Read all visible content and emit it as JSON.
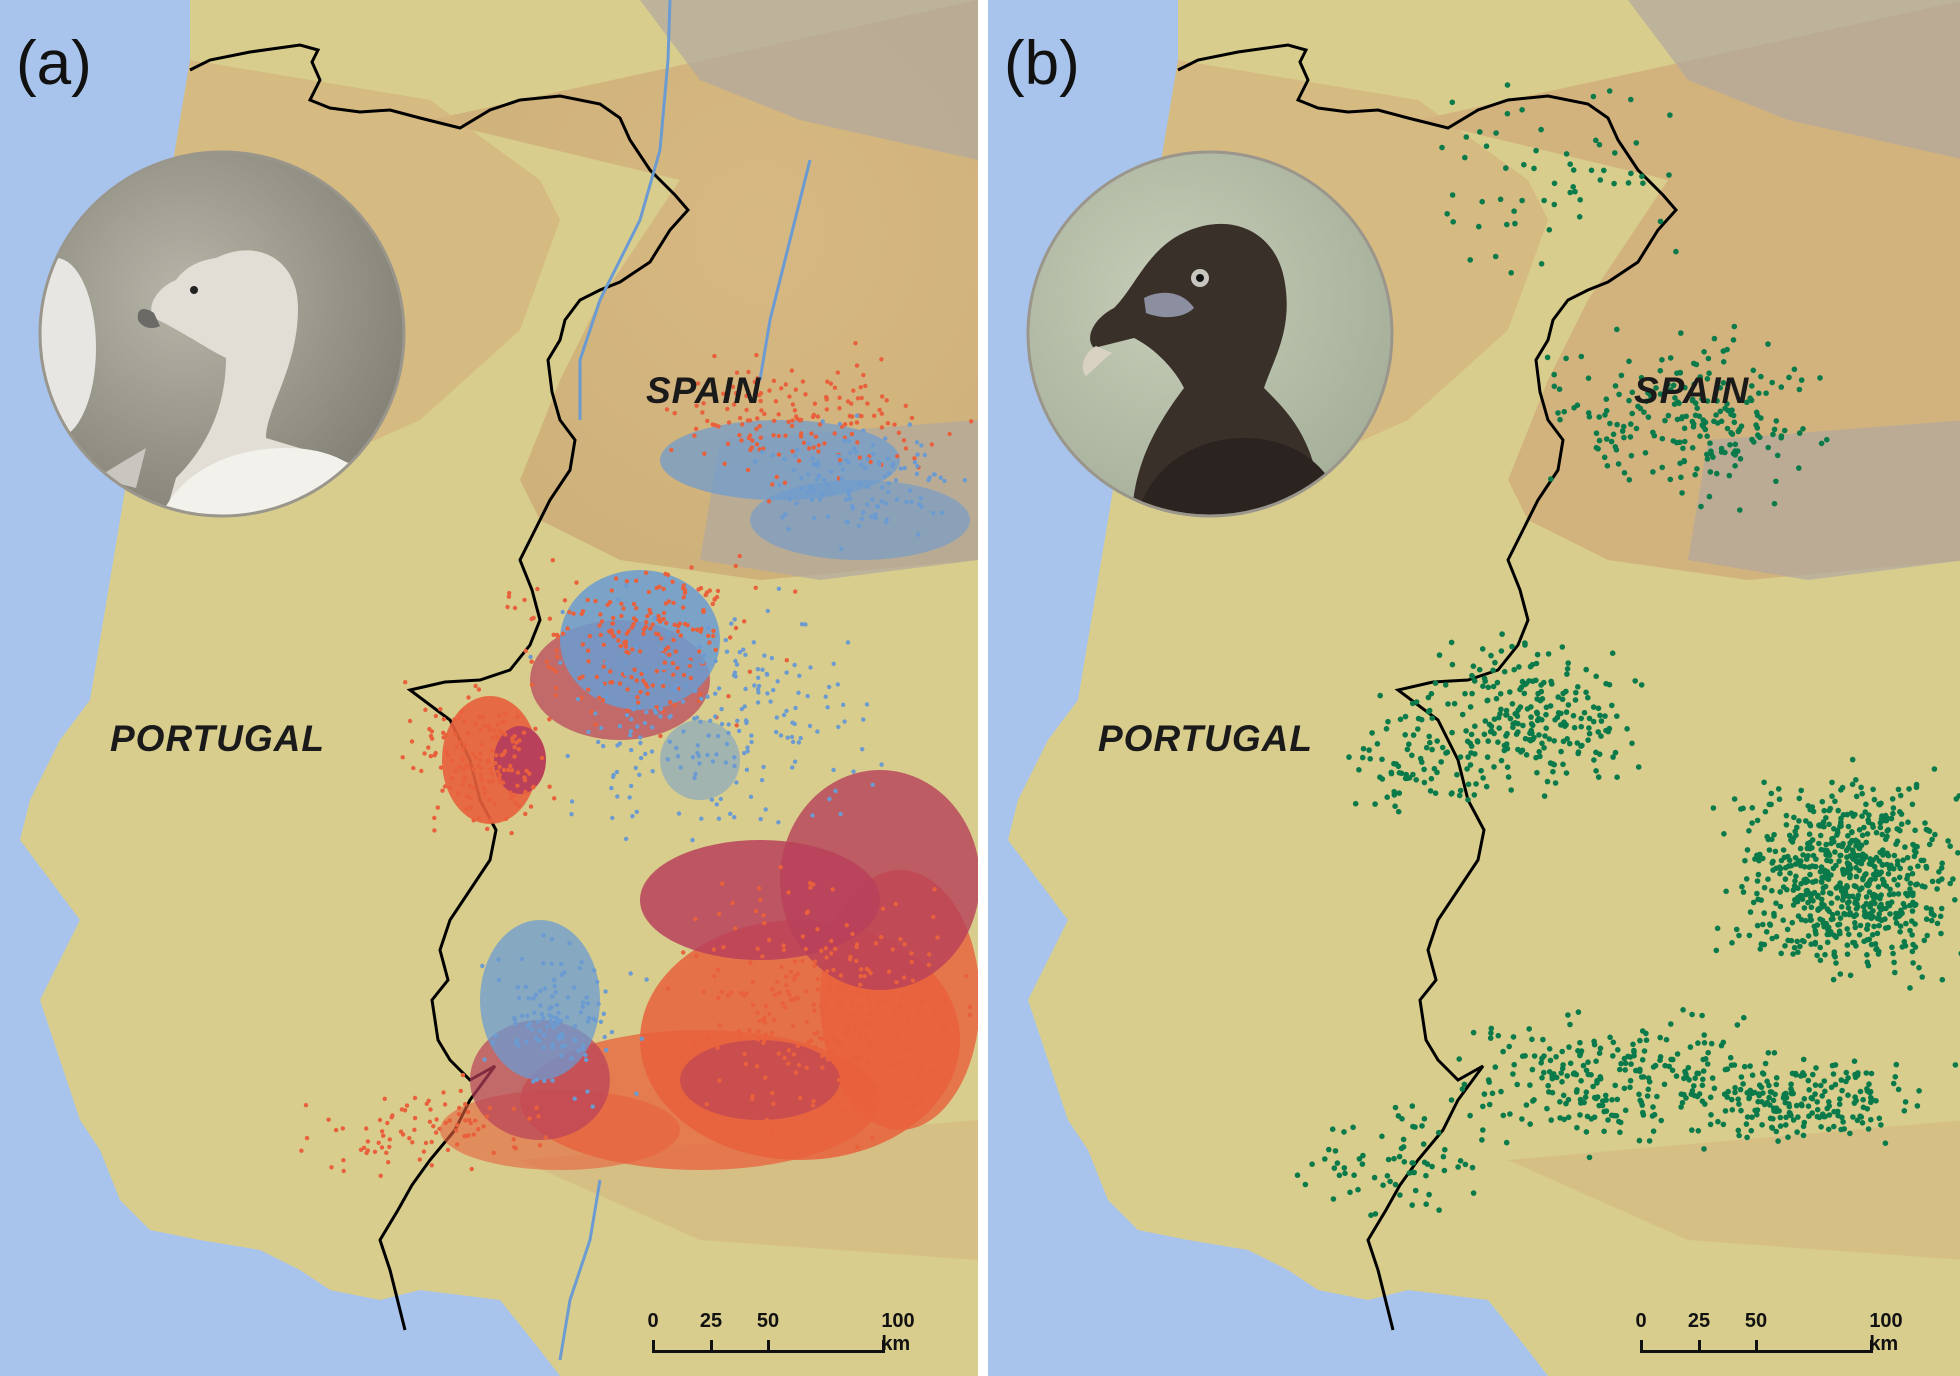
{
  "panels": [
    {
      "letter": "(a)",
      "countries": {
        "spain": "SPAIN",
        "portugal": "PORTUGAL"
      },
      "bird_photo": "griffon-vulture-photo",
      "track_colors": {
        "red": "#e8603c",
        "dark_red": "#b8405a",
        "blue": "#6b9bd1"
      }
    },
    {
      "letter": "(b)",
      "countries": {
        "spain": "SPAIN",
        "portugal": "PORTUGAL"
      },
      "bird_photo": "cinereous-vulture-photo",
      "point_color": "#0a7a4a"
    }
  ],
  "scale": {
    "ticks": [
      "0",
      "25",
      "50",
      "100 km"
    ]
  },
  "colors": {
    "sea": "#a8c4ec",
    "lowland": "#d8cd8c",
    "upland": "#d4b27e",
    "plateau": "#b0a8a0",
    "border": "#000000"
  }
}
